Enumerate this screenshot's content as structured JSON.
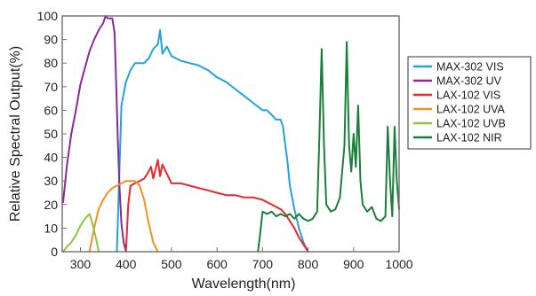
{
  "chart_data": {
    "type": "line",
    "title": "",
    "xlabel": "Wavelength(nm)",
    "ylabel": "Relative Spectral Output(%)",
    "xlim": [
      260,
      1000
    ],
    "ylim": [
      0,
      100
    ],
    "x_ticks": [
      300,
      400,
      500,
      600,
      700,
      800,
      900,
      1000
    ],
    "x_tick_labels": [
      "300",
      "400",
      "500",
      "600",
      "700",
      "800",
      "900",
      "1000"
    ],
    "y_ticks": [
      0,
      10,
      20,
      30,
      40,
      50,
      60,
      70,
      80,
      90,
      100
    ],
    "y_tick_labels": [
      "0",
      "10",
      "20",
      "30",
      "40",
      "50",
      "60",
      "70",
      "80",
      "90",
      "100"
    ],
    "grid": false,
    "legend_position": "right",
    "series": [
      {
        "name": "MAX-302 VIS",
        "color": "#22a3dd",
        "points": [
          [
            380,
            0
          ],
          [
            385,
            30
          ],
          [
            390,
            62
          ],
          [
            400,
            72
          ],
          [
            410,
            77
          ],
          [
            420,
            80
          ],
          [
            440,
            80
          ],
          [
            450,
            82
          ],
          [
            460,
            86
          ],
          [
            470,
            88
          ],
          [
            475,
            94
          ],
          [
            480,
            84
          ],
          [
            490,
            87
          ],
          [
            500,
            83
          ],
          [
            520,
            81
          ],
          [
            540,
            80
          ],
          [
            560,
            79
          ],
          [
            580,
            77
          ],
          [
            600,
            74
          ],
          [
            620,
            72
          ],
          [
            640,
            69
          ],
          [
            660,
            66
          ],
          [
            680,
            63
          ],
          [
            700,
            60
          ],
          [
            710,
            60
          ],
          [
            720,
            58
          ],
          [
            730,
            56
          ],
          [
            740,
            56
          ],
          [
            745,
            53
          ],
          [
            750,
            45
          ],
          [
            755,
            38
          ],
          [
            760,
            28
          ],
          [
            770,
            18
          ],
          [
            780,
            10
          ],
          [
            790,
            4
          ],
          [
            800,
            0
          ]
        ]
      },
      {
        "name": "MAX-302 UV",
        "color": "#8b2a95",
        "points": [
          [
            262,
            21
          ],
          [
            270,
            36
          ],
          [
            280,
            50
          ],
          [
            290,
            60
          ],
          [
            300,
            71
          ],
          [
            310,
            78
          ],
          [
            320,
            85
          ],
          [
            330,
            90
          ],
          [
            340,
            94
          ],
          [
            350,
            97
          ],
          [
            355,
            100
          ],
          [
            360,
            99
          ],
          [
            370,
            99
          ],
          [
            375,
            93
          ],
          [
            378,
            75
          ],
          [
            382,
            48
          ],
          [
            386,
            27
          ],
          [
            390,
            12
          ],
          [
            395,
            4
          ],
          [
            400,
            0
          ]
        ]
      },
      {
        "name": "LAX-102 VIS",
        "color": "#e8282b",
        "points": [
          [
            400,
            0
          ],
          [
            405,
            20
          ],
          [
            410,
            28
          ],
          [
            420,
            29
          ],
          [
            430,
            30
          ],
          [
            440,
            31
          ],
          [
            450,
            34
          ],
          [
            455,
            36
          ],
          [
            460,
            31
          ],
          [
            465,
            35
          ],
          [
            470,
            39
          ],
          [
            475,
            32
          ],
          [
            480,
            37
          ],
          [
            490,
            33
          ],
          [
            500,
            29
          ],
          [
            520,
            29
          ],
          [
            540,
            28
          ],
          [
            560,
            27
          ],
          [
            580,
            26
          ],
          [
            600,
            25
          ],
          [
            620,
            24
          ],
          [
            640,
            24
          ],
          [
            660,
            23
          ],
          [
            680,
            23
          ],
          [
            700,
            22
          ],
          [
            710,
            21
          ],
          [
            720,
            20
          ],
          [
            730,
            19
          ],
          [
            740,
            18
          ],
          [
            750,
            16
          ],
          [
            760,
            13
          ],
          [
            770,
            10
          ],
          [
            780,
            6
          ],
          [
            790,
            3
          ],
          [
            800,
            0
          ]
        ]
      },
      {
        "name": "LAX-102 UVA",
        "color": "#f0921e",
        "points": [
          [
            320,
            0
          ],
          [
            330,
            10
          ],
          [
            340,
            18
          ],
          [
            350,
            22
          ],
          [
            360,
            25
          ],
          [
            370,
            27
          ],
          [
            380,
            28
          ],
          [
            390,
            29
          ],
          [
            400,
            30
          ],
          [
            410,
            30
          ],
          [
            420,
            30
          ],
          [
            430,
            28
          ],
          [
            440,
            22
          ],
          [
            450,
            12
          ],
          [
            460,
            4
          ],
          [
            470,
            0
          ]
        ]
      },
      {
        "name": "LAX-102 UVB",
        "color": "#8dc63f",
        "points": [
          [
            262,
            0
          ],
          [
            270,
            2
          ],
          [
            280,
            4
          ],
          [
            290,
            7
          ],
          [
            300,
            11
          ],
          [
            310,
            14
          ],
          [
            315,
            15
          ],
          [
            320,
            16
          ],
          [
            325,
            13
          ],
          [
            330,
            9
          ],
          [
            335,
            5
          ],
          [
            340,
            0
          ]
        ]
      },
      {
        "name": "LAX-102 NIR",
        "color": "#1a7f3c",
        "points": [
          [
            690,
            0
          ],
          [
            695,
            8
          ],
          [
            700,
            17
          ],
          [
            710,
            16
          ],
          [
            720,
            17
          ],
          [
            730,
            15
          ],
          [
            740,
            16
          ],
          [
            750,
            15
          ],
          [
            760,
            16
          ],
          [
            770,
            14
          ],
          [
            780,
            16
          ],
          [
            790,
            14
          ],
          [
            800,
            13
          ],
          [
            810,
            14
          ],
          [
            820,
            17
          ],
          [
            825,
            50
          ],
          [
            830,
            86
          ],
          [
            835,
            45
          ],
          [
            840,
            20
          ],
          [
            850,
            17
          ],
          [
            860,
            18
          ],
          [
            870,
            23
          ],
          [
            880,
            45
          ],
          [
            885,
            89
          ],
          [
            890,
            45
          ],
          [
            895,
            34
          ],
          [
            900,
            50
          ],
          [
            905,
            36
          ],
          [
            910,
            62
          ],
          [
            915,
            30
          ],
          [
            920,
            20
          ],
          [
            930,
            17
          ],
          [
            940,
            19
          ],
          [
            950,
            14
          ],
          [
            960,
            13
          ],
          [
            970,
            15
          ],
          [
            975,
            53
          ],
          [
            980,
            30
          ],
          [
            985,
            15
          ],
          [
            990,
            53
          ],
          [
            995,
            30
          ],
          [
            1000,
            18
          ]
        ]
      }
    ]
  }
}
